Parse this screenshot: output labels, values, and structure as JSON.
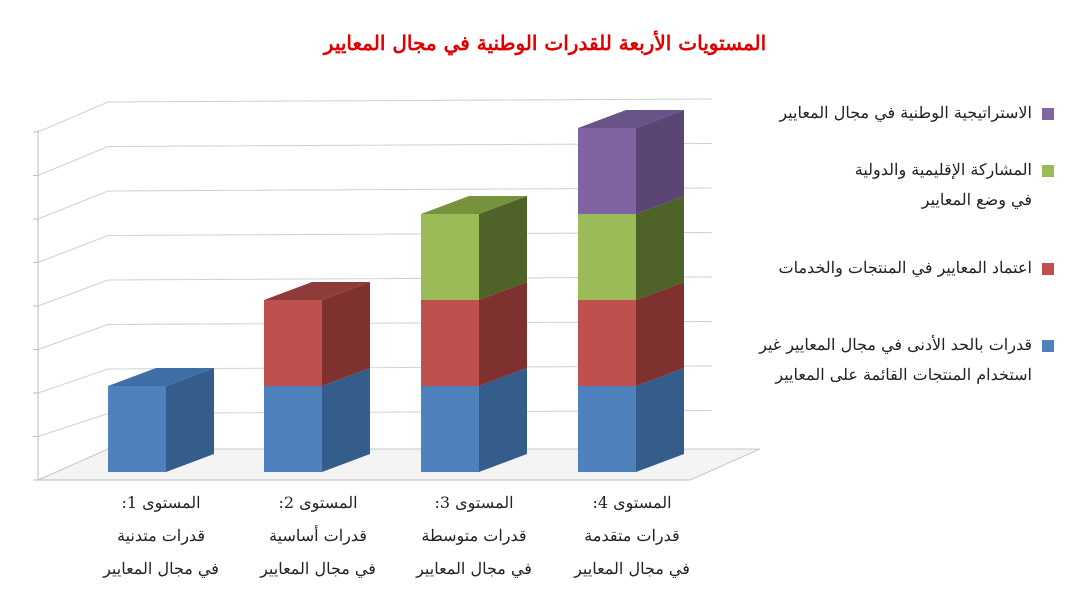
{
  "chart_data": {
    "type": "bar",
    "stacked": true,
    "three_d": true,
    "title": "المستويات الأربعة للقدرات الوطنية في مجال المعايير",
    "xlabel": "",
    "ylabel": "",
    "ylim": [
      0,
      4
    ],
    "grid": true,
    "legend_position": "right",
    "categories": [
      {
        "lines": [
          "المستوى 1:",
          "قدرات متدنية",
          "في مجال المعايير"
        ]
      },
      {
        "lines": [
          "المستوى 2:",
          "قدرات أساسية",
          "في مجال المعايير"
        ]
      },
      {
        "lines": [
          "المستوى 3:",
          "قدرات متوسطة",
          "في مجال المعايير"
        ]
      },
      {
        "lines": [
          "المستوى 4:",
          "قدرات متقدمة",
          "في مجال المعايير"
        ]
      }
    ],
    "series": [
      {
        "name": "قدرات بالحد الأدنى في مجال المعايير غير استخدام المنتجات القائمة على المعايير",
        "name_lines": [
          "قدرات بالحد الأدنى في مجال المعايير غير",
          "استخدام المنتجات القائمة على المعايير"
        ],
        "color": "#4f81bd",
        "side_color": "#355d8c",
        "top_color": "#3f6ea6",
        "values": [
          1,
          1,
          1,
          1
        ]
      },
      {
        "name": "اعتماد المعايير في المنتجات والخدمات",
        "name_lines": [
          "اعتماد المعايير في المنتجات والخدمات"
        ],
        "color": "#c0504d",
        "side_color": "#7f3130",
        "top_color": "#8f3b3a",
        "values": [
          0,
          1,
          1,
          1
        ]
      },
      {
        "name": "المشاركة الإقليمية والدولية في وضع المعايير",
        "name_lines": [
          "المشاركة الإقليمية والدولية",
          "في وضع المعايير"
        ],
        "color": "#9bbb59",
        "side_color": "#4f6228",
        "top_color": "#76923c",
        "values": [
          0,
          0,
          1,
          1
        ]
      },
      {
        "name": "الاستراتيجية الوطنية في مجال المعايير",
        "name_lines": [
          "الاستراتيجية الوطنية في مجال المعايير"
        ],
        "color": "#8064a2",
        "side_color": "#5a4575",
        "top_color": "#6a5388",
        "values": [
          0,
          0,
          0,
          1
        ]
      }
    ]
  }
}
